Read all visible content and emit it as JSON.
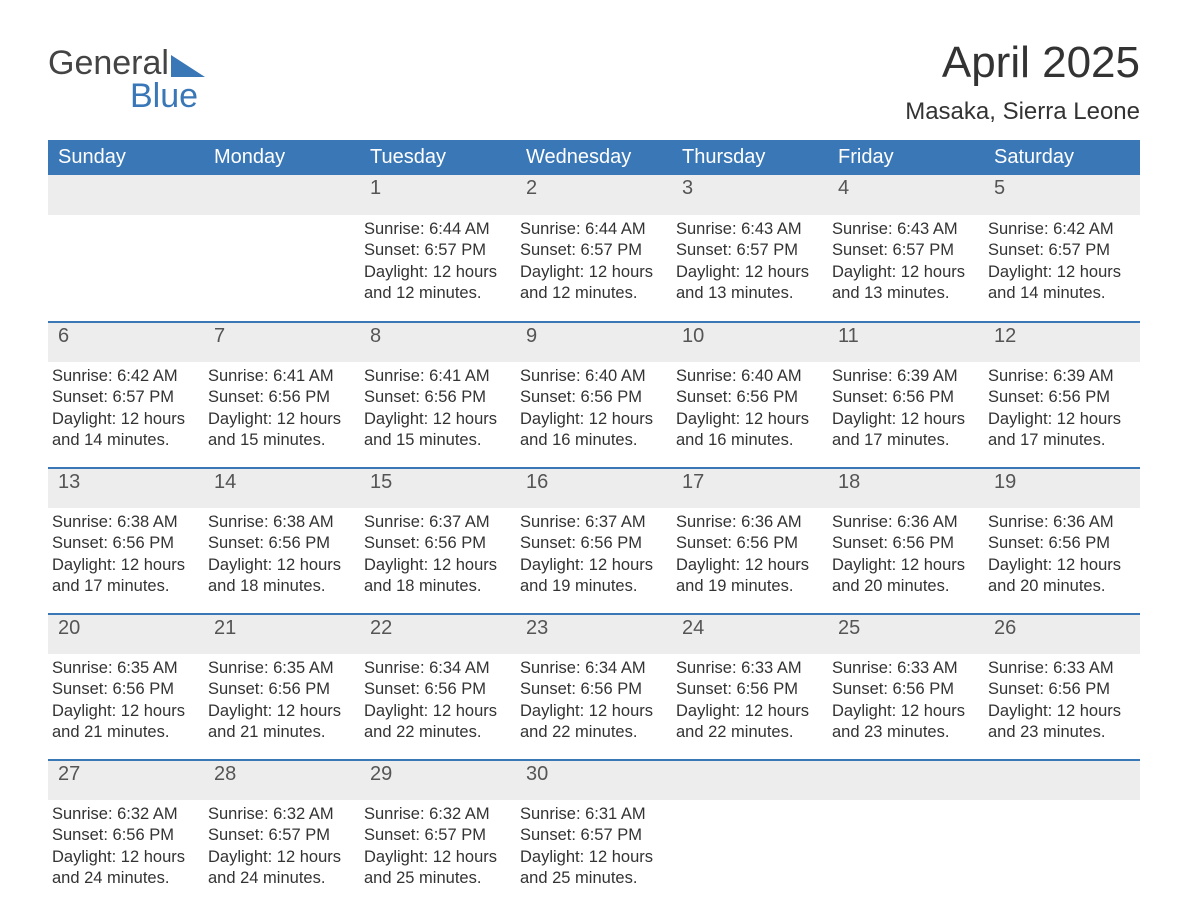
{
  "logo": {
    "word1": "General",
    "word2": "Blue"
  },
  "title": "April 2025",
  "location": "Masaka, Sierra Leone",
  "colors": {
    "header_bg": "#3a77b7",
    "header_text": "#ffffff",
    "num_bg": "#ededed",
    "border": "#3a77b7",
    "text": "#333333",
    "logo_accent": "#3a77b7"
  },
  "day_headers": [
    "Sunday",
    "Monday",
    "Tuesday",
    "Wednesday",
    "Thursday",
    "Friday",
    "Saturday"
  ],
  "weeks": [
    [
      null,
      null,
      {
        "n": "1",
        "sr": "Sunrise: 6:44 AM",
        "ss": "Sunset: 6:57 PM",
        "d1": "Daylight: 12 hours",
        "d2": "and 12 minutes."
      },
      {
        "n": "2",
        "sr": "Sunrise: 6:44 AM",
        "ss": "Sunset: 6:57 PM",
        "d1": "Daylight: 12 hours",
        "d2": "and 12 minutes."
      },
      {
        "n": "3",
        "sr": "Sunrise: 6:43 AM",
        "ss": "Sunset: 6:57 PM",
        "d1": "Daylight: 12 hours",
        "d2": "and 13 minutes."
      },
      {
        "n": "4",
        "sr": "Sunrise: 6:43 AM",
        "ss": "Sunset: 6:57 PM",
        "d1": "Daylight: 12 hours",
        "d2": "and 13 minutes."
      },
      {
        "n": "5",
        "sr": "Sunrise: 6:42 AM",
        "ss": "Sunset: 6:57 PM",
        "d1": "Daylight: 12 hours",
        "d2": "and 14 minutes."
      }
    ],
    [
      {
        "n": "6",
        "sr": "Sunrise: 6:42 AM",
        "ss": "Sunset: 6:57 PM",
        "d1": "Daylight: 12 hours",
        "d2": "and 14 minutes."
      },
      {
        "n": "7",
        "sr": "Sunrise: 6:41 AM",
        "ss": "Sunset: 6:56 PM",
        "d1": "Daylight: 12 hours",
        "d2": "and 15 minutes."
      },
      {
        "n": "8",
        "sr": "Sunrise: 6:41 AM",
        "ss": "Sunset: 6:56 PM",
        "d1": "Daylight: 12 hours",
        "d2": "and 15 minutes."
      },
      {
        "n": "9",
        "sr": "Sunrise: 6:40 AM",
        "ss": "Sunset: 6:56 PM",
        "d1": "Daylight: 12 hours",
        "d2": "and 16 minutes."
      },
      {
        "n": "10",
        "sr": "Sunrise: 6:40 AM",
        "ss": "Sunset: 6:56 PM",
        "d1": "Daylight: 12 hours",
        "d2": "and 16 minutes."
      },
      {
        "n": "11",
        "sr": "Sunrise: 6:39 AM",
        "ss": "Sunset: 6:56 PM",
        "d1": "Daylight: 12 hours",
        "d2": "and 17 minutes."
      },
      {
        "n": "12",
        "sr": "Sunrise: 6:39 AM",
        "ss": "Sunset: 6:56 PM",
        "d1": "Daylight: 12 hours",
        "d2": "and 17 minutes."
      }
    ],
    [
      {
        "n": "13",
        "sr": "Sunrise: 6:38 AM",
        "ss": "Sunset: 6:56 PM",
        "d1": "Daylight: 12 hours",
        "d2": "and 17 minutes."
      },
      {
        "n": "14",
        "sr": "Sunrise: 6:38 AM",
        "ss": "Sunset: 6:56 PM",
        "d1": "Daylight: 12 hours",
        "d2": "and 18 minutes."
      },
      {
        "n": "15",
        "sr": "Sunrise: 6:37 AM",
        "ss": "Sunset: 6:56 PM",
        "d1": "Daylight: 12 hours",
        "d2": "and 18 minutes."
      },
      {
        "n": "16",
        "sr": "Sunrise: 6:37 AM",
        "ss": "Sunset: 6:56 PM",
        "d1": "Daylight: 12 hours",
        "d2": "and 19 minutes."
      },
      {
        "n": "17",
        "sr": "Sunrise: 6:36 AM",
        "ss": "Sunset: 6:56 PM",
        "d1": "Daylight: 12 hours",
        "d2": "and 19 minutes."
      },
      {
        "n": "18",
        "sr": "Sunrise: 6:36 AM",
        "ss": "Sunset: 6:56 PM",
        "d1": "Daylight: 12 hours",
        "d2": "and 20 minutes."
      },
      {
        "n": "19",
        "sr": "Sunrise: 6:36 AM",
        "ss": "Sunset: 6:56 PM",
        "d1": "Daylight: 12 hours",
        "d2": "and 20 minutes."
      }
    ],
    [
      {
        "n": "20",
        "sr": "Sunrise: 6:35 AM",
        "ss": "Sunset: 6:56 PM",
        "d1": "Daylight: 12 hours",
        "d2": "and 21 minutes."
      },
      {
        "n": "21",
        "sr": "Sunrise: 6:35 AM",
        "ss": "Sunset: 6:56 PM",
        "d1": "Daylight: 12 hours",
        "d2": "and 21 minutes."
      },
      {
        "n": "22",
        "sr": "Sunrise: 6:34 AM",
        "ss": "Sunset: 6:56 PM",
        "d1": "Daylight: 12 hours",
        "d2": "and 22 minutes."
      },
      {
        "n": "23",
        "sr": "Sunrise: 6:34 AM",
        "ss": "Sunset: 6:56 PM",
        "d1": "Daylight: 12 hours",
        "d2": "and 22 minutes."
      },
      {
        "n": "24",
        "sr": "Sunrise: 6:33 AM",
        "ss": "Sunset: 6:56 PM",
        "d1": "Daylight: 12 hours",
        "d2": "and 22 minutes."
      },
      {
        "n": "25",
        "sr": "Sunrise: 6:33 AM",
        "ss": "Sunset: 6:56 PM",
        "d1": "Daylight: 12 hours",
        "d2": "and 23 minutes."
      },
      {
        "n": "26",
        "sr": "Sunrise: 6:33 AM",
        "ss": "Sunset: 6:56 PM",
        "d1": "Daylight: 12 hours",
        "d2": "and 23 minutes."
      }
    ],
    [
      {
        "n": "27",
        "sr": "Sunrise: 6:32 AM",
        "ss": "Sunset: 6:56 PM",
        "d1": "Daylight: 12 hours",
        "d2": "and 24 minutes."
      },
      {
        "n": "28",
        "sr": "Sunrise: 6:32 AM",
        "ss": "Sunset: 6:57 PM",
        "d1": "Daylight: 12 hours",
        "d2": "and 24 minutes."
      },
      {
        "n": "29",
        "sr": "Sunrise: 6:32 AM",
        "ss": "Sunset: 6:57 PM",
        "d1": "Daylight: 12 hours",
        "d2": "and 25 minutes."
      },
      {
        "n": "30",
        "sr": "Sunrise: 6:31 AM",
        "ss": "Sunset: 6:57 PM",
        "d1": "Daylight: 12 hours",
        "d2": "and 25 minutes."
      },
      null,
      null,
      null
    ]
  ]
}
